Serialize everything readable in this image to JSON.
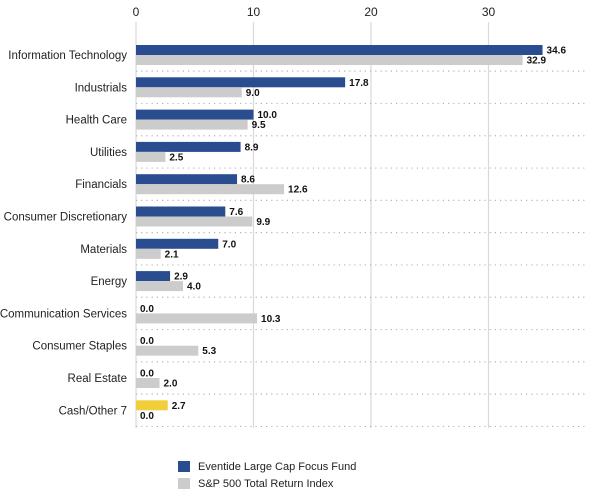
{
  "chart_data": {
    "type": "bar",
    "orientation": "horizontal",
    "categories": [
      "Information Technology",
      "Industrials",
      "Health Care",
      "Utilities",
      "Financials",
      "Consumer Discretionary",
      "Materials",
      "Energy",
      "Communication Services",
      "Consumer Staples",
      "Real Estate",
      "Cash/Other 7"
    ],
    "series": [
      {
        "name": "Eventide Large Cap Focus Fund",
        "values": [
          34.6,
          17.8,
          10.0,
          8.9,
          8.6,
          7.6,
          7.0,
          2.9,
          0.0,
          0.0,
          0.0,
          2.7
        ],
        "labels": [
          "34.6",
          "17.8",
          "10.0",
          "8.9",
          "8.6",
          "7.6",
          "7.0",
          "2.9",
          "0.0",
          "0.0",
          "0.0",
          "2.7"
        ],
        "color": "#2a4d8f",
        "highlight": {
          "index": 11,
          "color": "#f1cf3b"
        }
      },
      {
        "name": "S&P 500 Total Return Index",
        "values": [
          32.9,
          9.0,
          9.5,
          2.5,
          12.6,
          9.9,
          2.1,
          4.0,
          10.3,
          5.3,
          2.0,
          0.0
        ],
        "labels": [
          "32.9",
          "9.0",
          "9.5",
          "2.5",
          "12.6",
          "9.9",
          "2.1",
          "4.0",
          "10.3",
          "5.3",
          "2.0",
          "0.0"
        ],
        "color": "#cccccc"
      }
    ],
    "xticks": [
      "0",
      "10",
      "20",
      "30"
    ],
    "xlim": [
      0,
      38.5
    ],
    "axis_position": "top",
    "grid": "vertical solid, horizontal dotted",
    "legend": "bottom-left",
    "gridline_color": "#d9d9d9"
  }
}
